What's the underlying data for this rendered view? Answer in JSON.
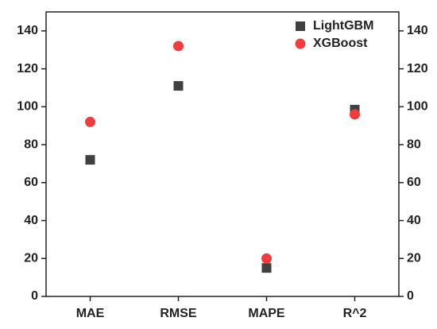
{
  "chart_data": {
    "type": "scatter",
    "categories": [
      "MAE",
      "RMSE",
      "MAPE",
      "R^2"
    ],
    "series": [
      {
        "name": "LightGBM",
        "color": "#404040",
        "marker": "square",
        "values": [
          72,
          111,
          15,
          98.5
        ]
      },
      {
        "name": "XGBoost",
        "color": "#f03c3c",
        "marker": "circle",
        "values": [
          92,
          132,
          20,
          96
        ]
      }
    ],
    "ylim": [
      0,
      150
    ],
    "yticks": [
      0,
      20,
      40,
      60,
      80,
      100,
      120,
      140
    ],
    "y2lim": [
      0,
      150
    ],
    "y2ticks": [
      0,
      20,
      40,
      60,
      80,
      100,
      120,
      140
    ],
    "legend": "top-right"
  }
}
